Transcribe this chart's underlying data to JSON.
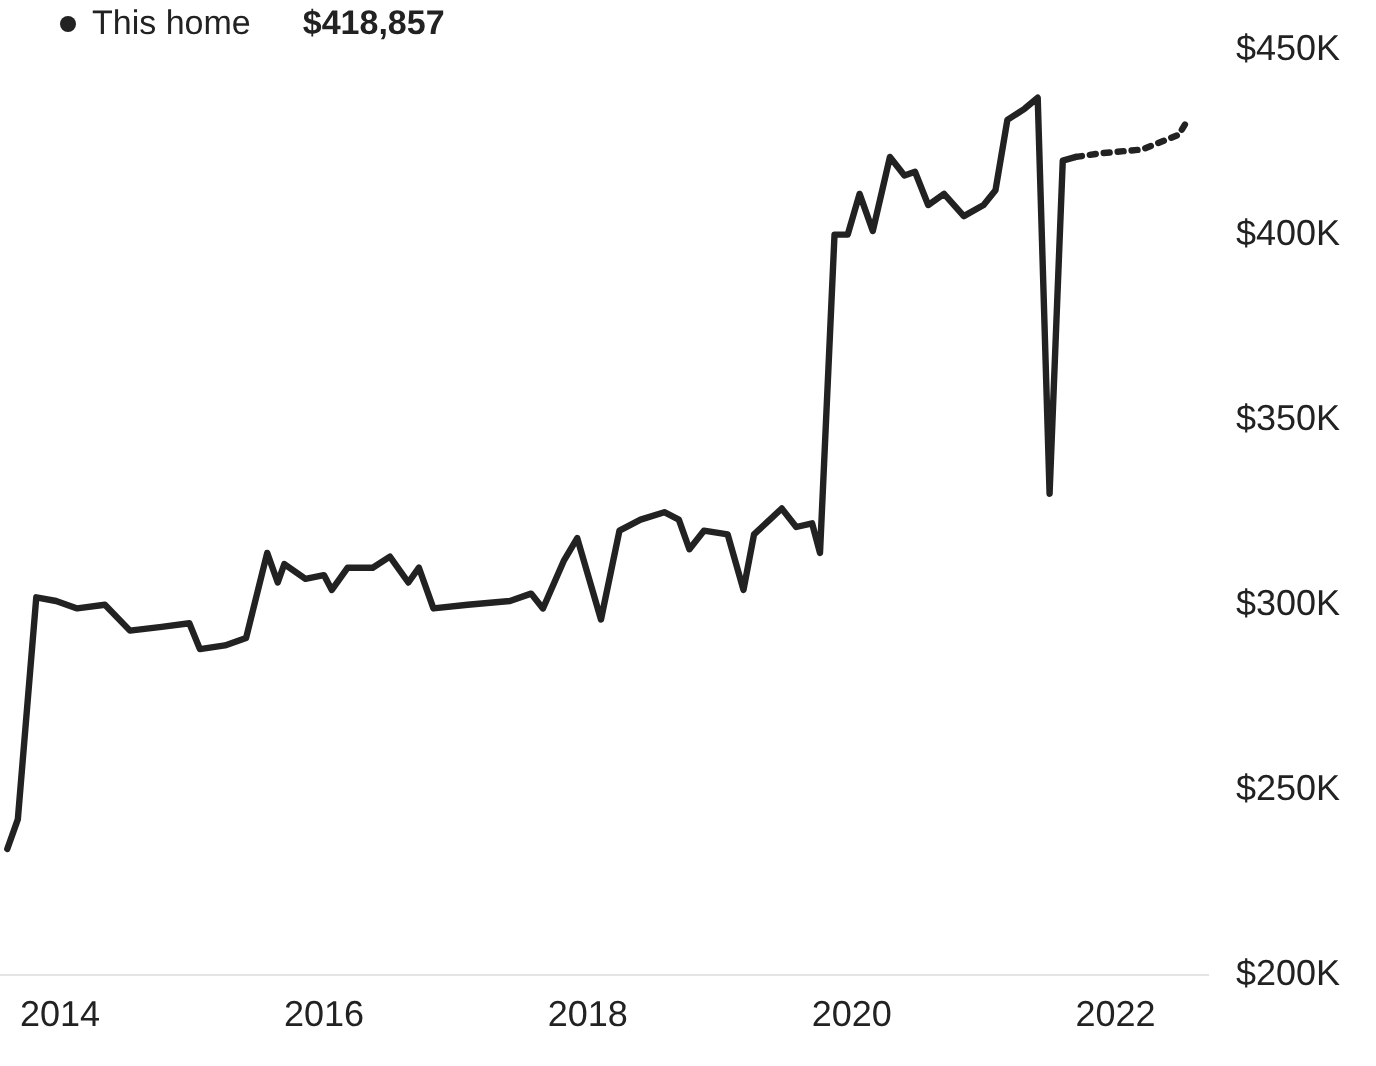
{
  "chart_data": {
    "type": "line",
    "annotations": [
      "$418,857"
    ],
    "legend": "top left",
    "xlim": [
      2013.55,
      2022.7
    ],
    "xticks": [
      2014,
      2016,
      2018,
      2020,
      2022
    ],
    "ylim": [
      200,
      450
    ],
    "yticks": [
      {
        "value": 200,
        "label": "$200K"
      },
      {
        "value": 250,
        "label": "$250K"
      },
      {
        "value": 300,
        "label": "$300K"
      },
      {
        "value": 350,
        "label": "$350K"
      },
      {
        "value": 400,
        "label": "$400K"
      },
      {
        "value": 450,
        "label": "$450K"
      }
    ],
    "grid": false,
    "marker": "none",
    "series": [
      {
        "name": "This home",
        "color": "#222222",
        "line_style": "solid",
        "x": [
          2013.6,
          2013.68,
          2013.82,
          2013.97,
          2014.13,
          2014.34,
          2014.53,
          2014.77,
          2014.98,
          2015.06,
          2015.25,
          2015.41,
          2015.57,
          2015.65,
          2015.7,
          2015.86,
          2016.0,
          2016.06,
          2016.18,
          2016.37,
          2016.5,
          2016.64,
          2016.72,
          2016.83,
          2017.09,
          2017.41,
          2017.57,
          2017.66,
          2017.82,
          2017.92,
          2018.1,
          2018.24,
          2018.4,
          2018.58,
          2018.69,
          2018.77,
          2018.88,
          2019.06,
          2019.18,
          2019.26,
          2019.38,
          2019.47,
          2019.58,
          2019.7,
          2019.76,
          2019.87,
          2019.97,
          2020.06,
          2020.16,
          2020.29,
          2020.4,
          2020.48,
          2020.58,
          2020.7,
          2020.85,
          2021.0,
          2021.09,
          2021.18,
          2021.31,
          2021.41,
          2021.5,
          2021.6,
          2021.7
        ],
        "values": [
          234,
          242,
          302,
          301,
          299,
          300,
          293,
          294,
          295,
          288,
          289,
          291,
          314,
          306,
          311,
          307,
          308,
          304,
          310,
          310,
          313,
          306,
          310,
          299,
          300,
          301,
          303,
          299,
          312,
          318,
          296,
          320,
          323,
          325,
          323,
          315,
          320,
          319,
          304,
          319,
          323,
          326,
          321,
          322,
          314,
          400,
          400,
          411,
          401,
          421,
          416,
          417,
          408,
          411,
          405,
          408,
          412,
          431,
          434,
          437,
          330,
          420,
          421
        ]
      },
      {
        "color": "#222222",
        "line_style": "dotted",
        "x": [
          2021.7,
          2021.89,
          2022.2,
          2022.48,
          2022.53
        ],
        "values": [
          421,
          422,
          423,
          427,
          430
        ]
      }
    ]
  }
}
